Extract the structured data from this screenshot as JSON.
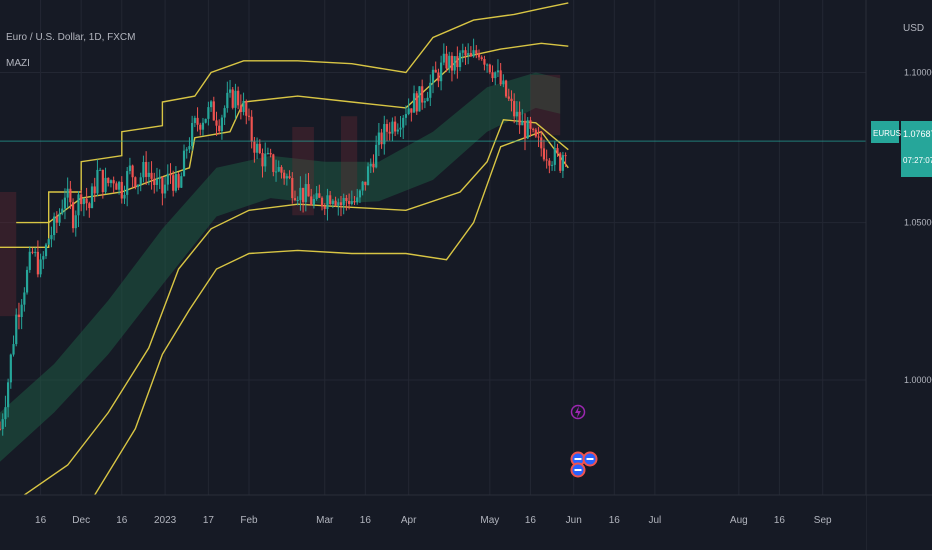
{
  "header": {
    "symbol_title": "Euro / U.S. Dollar, 1D, FXCM",
    "indicator": "MAZI",
    "currency": "USD"
  },
  "price_tag": {
    "symbol": "EURUSD",
    "price": "1.07687",
    "countdown": "07:27:07"
  },
  "colors": {
    "background": "#161a25",
    "grid": "#232733",
    "candle_up": "#26a69a",
    "candle_down": "#ef5350",
    "bands": "#d8c544",
    "cloud_up": "#1f5a44",
    "cloud_down": "#6e2a33",
    "price_line": "#26a69a"
  },
  "event_markers": [
    {
      "icon": "lightning-icon",
      "color": "#9c27b0"
    },
    {
      "icon": "us-flag-icon",
      "color": "#ef5350"
    },
    {
      "icon": "us-flag-icon",
      "color": "#ef5350"
    }
  ],
  "chart_data": {
    "type": "candlestick",
    "title": "Euro / U.S. Dollar, 1D, FXCM",
    "y_scale": "log",
    "ylim": [
      0.965,
      1.125
    ],
    "y_ticks": [
      {
        "label": "1.10000",
        "value": 1.1
      },
      {
        "label": "1.05000",
        "value": 1.05
      },
      {
        "label": "1.00000",
        "value": 1.0
      }
    ],
    "x_tick_labels": [
      "16",
      "Dec",
      "16",
      "2023",
      "17",
      "Feb",
      "Mar",
      "16",
      "Apr",
      "May",
      "16",
      "Jun",
      "16",
      "Jul",
      "Aug",
      "16",
      "Sep"
    ],
    "x_tick_days": [
      15,
      30,
      45,
      61,
      77,
      92,
      120,
      135,
      151,
      181,
      196,
      212,
      227,
      242,
      273,
      288,
      304
    ],
    "x_range_days": [
      0,
      320
    ],
    "last_price": 1.07687,
    "close_points": [
      {
        "d": 0,
        "v": 0.985
      },
      {
        "d": 3,
        "v": 1.0
      },
      {
        "d": 6,
        "v": 1.02
      },
      {
        "d": 9,
        "v": 1.03
      },
      {
        "d": 12,
        "v": 1.04
      },
      {
        "d": 15,
        "v": 1.035
      },
      {
        "d": 18,
        "v": 1.045
      },
      {
        "d": 21,
        "v": 1.05
      },
      {
        "d": 24,
        "v": 1.06
      },
      {
        "d": 27,
        "v": 1.052
      },
      {
        "d": 30,
        "v": 1.06
      },
      {
        "d": 33,
        "v": 1.055
      },
      {
        "d": 36,
        "v": 1.066
      },
      {
        "d": 39,
        "v": 1.062
      },
      {
        "d": 42,
        "v": 1.065
      },
      {
        "d": 45,
        "v": 1.061
      },
      {
        "d": 48,
        "v": 1.067
      },
      {
        "d": 51,
        "v": 1.064
      },
      {
        "d": 54,
        "v": 1.068
      },
      {
        "d": 57,
        "v": 1.063
      },
      {
        "d": 60,
        "v": 1.06
      },
      {
        "d": 63,
        "v": 1.066
      },
      {
        "d": 66,
        "v": 1.06
      },
      {
        "d": 69,
        "v": 1.075
      },
      {
        "d": 72,
        "v": 1.082
      },
      {
        "d": 75,
        "v": 1.085
      },
      {
        "d": 78,
        "v": 1.087
      },
      {
        "d": 81,
        "v": 1.084
      },
      {
        "d": 84,
        "v": 1.09
      },
      {
        "d": 87,
        "v": 1.092
      },
      {
        "d": 90,
        "v": 1.088
      },
      {
        "d": 93,
        "v": 1.078
      },
      {
        "d": 96,
        "v": 1.072
      },
      {
        "d": 99,
        "v": 1.07
      },
      {
        "d": 102,
        "v": 1.068
      },
      {
        "d": 105,
        "v": 1.066
      },
      {
        "d": 108,
        "v": 1.062
      },
      {
        "d": 111,
        "v": 1.06
      },
      {
        "d": 114,
        "v": 1.058
      },
      {
        "d": 117,
        "v": 1.056
      },
      {
        "d": 120,
        "v": 1.058
      },
      {
        "d": 123,
        "v": 1.06
      },
      {
        "d": 126,
        "v": 1.056
      },
      {
        "d": 129,
        "v": 1.058
      },
      {
        "d": 132,
        "v": 1.056
      },
      {
        "d": 135,
        "v": 1.064
      },
      {
        "d": 138,
        "v": 1.072
      },
      {
        "d": 141,
        "v": 1.078
      },
      {
        "d": 144,
        "v": 1.082
      },
      {
        "d": 147,
        "v": 1.084
      },
      {
        "d": 150,
        "v": 1.088
      },
      {
        "d": 153,
        "v": 1.09
      },
      {
        "d": 156,
        "v": 1.092
      },
      {
        "d": 159,
        "v": 1.096
      },
      {
        "d": 162,
        "v": 1.1
      },
      {
        "d": 165,
        "v": 1.104
      },
      {
        "d": 168,
        "v": 1.102
      },
      {
        "d": 171,
        "v": 1.106
      },
      {
        "d": 174,
        "v": 1.104
      },
      {
        "d": 177,
        "v": 1.108
      },
      {
        "d": 180,
        "v": 1.104
      },
      {
        "d": 183,
        "v": 1.1
      },
      {
        "d": 186,
        "v": 1.094
      },
      {
        "d": 189,
        "v": 1.088
      },
      {
        "d": 192,
        "v": 1.083
      },
      {
        "d": 195,
        "v": 1.08
      },
      {
        "d": 198,
        "v": 1.076
      },
      {
        "d": 201,
        "v": 1.074
      },
      {
        "d": 204,
        "v": 1.072
      },
      {
        "d": 207,
        "v": 1.07
      },
      {
        "d": 209,
        "v": 1.076
      }
    ],
    "series": [
      {
        "role": "upper outer band",
        "color": "#d8c544",
        "points": [
          {
            "d": 0,
            "v": 1.042
          },
          {
            "d": 18,
            "v": 1.042
          },
          {
            "d": 18,
            "v": 1.06
          },
          {
            "d": 30,
            "v": 1.06
          },
          {
            "d": 30,
            "v": 1.07
          },
          {
            "d": 45,
            "v": 1.072
          },
          {
            "d": 45,
            "v": 1.08
          },
          {
            "d": 60,
            "v": 1.082
          },
          {
            "d": 60,
            "v": 1.09
          },
          {
            "d": 72,
            "v": 1.092
          },
          {
            "d": 78,
            "v": 1.1
          },
          {
            "d": 90,
            "v": 1.104
          },
          {
            "d": 110,
            "v": 1.104
          },
          {
            "d": 130,
            "v": 1.103
          },
          {
            "d": 150,
            "v": 1.1
          },
          {
            "d": 160,
            "v": 1.112
          },
          {
            "d": 175,
            "v": 1.118
          },
          {
            "d": 190,
            "v": 1.12
          },
          {
            "d": 200,
            "v": 1.122
          },
          {
            "d": 210,
            "v": 1.124
          }
        ]
      },
      {
        "role": "upper mid band",
        "color": "#d8c544",
        "points": [
          {
            "d": 6,
            "v": 1.05
          },
          {
            "d": 18,
            "v": 1.05
          },
          {
            "d": 30,
            "v": 1.058
          },
          {
            "d": 45,
            "v": 1.06
          },
          {
            "d": 60,
            "v": 1.065
          },
          {
            "d": 70,
            "v": 1.068
          },
          {
            "d": 72,
            "v": 1.078
          },
          {
            "d": 85,
            "v": 1.08
          },
          {
            "d": 90,
            "v": 1.09
          },
          {
            "d": 110,
            "v": 1.092
          },
          {
            "d": 130,
            "v": 1.09
          },
          {
            "d": 150,
            "v": 1.088
          },
          {
            "d": 170,
            "v": 1.105
          },
          {
            "d": 185,
            "v": 1.108
          },
          {
            "d": 200,
            "v": 1.11
          },
          {
            "d": 210,
            "v": 1.109
          }
        ]
      },
      {
        "role": "lower mid band",
        "color": "#d8c544",
        "points": [
          {
            "d": 0,
            "v": 0.96
          },
          {
            "d": 25,
            "v": 0.974
          },
          {
            "d": 40,
            "v": 0.99
          },
          {
            "d": 55,
            "v": 1.01
          },
          {
            "d": 66,
            "v": 1.035
          },
          {
            "d": 78,
            "v": 1.048
          },
          {
            "d": 92,
            "v": 1.054
          },
          {
            "d": 110,
            "v": 1.056
          },
          {
            "d": 130,
            "v": 1.055
          },
          {
            "d": 150,
            "v": 1.054
          },
          {
            "d": 170,
            "v": 1.06
          },
          {
            "d": 180,
            "v": 1.07
          },
          {
            "d": 186,
            "v": 1.084
          },
          {
            "d": 198,
            "v": 1.083
          },
          {
            "d": 210,
            "v": 1.074
          }
        ]
      },
      {
        "role": "lower outer band",
        "color": "#d8c544",
        "points": [
          {
            "d": 20,
            "v": 0.945
          },
          {
            "d": 35,
            "v": 0.965
          },
          {
            "d": 50,
            "v": 0.985
          },
          {
            "d": 60,
            "v": 1.008
          },
          {
            "d": 70,
            "v": 1.022
          },
          {
            "d": 80,
            "v": 1.035
          },
          {
            "d": 92,
            "v": 1.04
          },
          {
            "d": 110,
            "v": 1.041
          },
          {
            "d": 130,
            "v": 1.04
          },
          {
            "d": 150,
            "v": 1.04
          },
          {
            "d": 165,
            "v": 1.038
          },
          {
            "d": 175,
            "v": 1.05
          },
          {
            "d": 185,
            "v": 1.075
          },
          {
            "d": 200,
            "v": 1.08
          },
          {
            "d": 210,
            "v": 1.068
          }
        ]
      }
    ],
    "cloud": {
      "upper": [
        {
          "d": 0,
          "v": 0.99
        },
        {
          "d": 20,
          "v": 1.005
        },
        {
          "d": 40,
          "v": 1.025
        },
        {
          "d": 60,
          "v": 1.048
        },
        {
          "d": 80,
          "v": 1.068
        },
        {
          "d": 100,
          "v": 1.072
        },
        {
          "d": 120,
          "v": 1.07
        },
        {
          "d": 140,
          "v": 1.07
        },
        {
          "d": 160,
          "v": 1.08
        },
        {
          "d": 180,
          "v": 1.095
        },
        {
          "d": 198,
          "v": 1.1
        },
        {
          "d": 207,
          "v": 1.098
        }
      ],
      "lower": [
        {
          "d": 0,
          "v": 0.975
        },
        {
          "d": 20,
          "v": 0.99
        },
        {
          "d": 40,
          "v": 1.008
        },
        {
          "d": 60,
          "v": 1.03
        },
        {
          "d": 80,
          "v": 1.052
        },
        {
          "d": 100,
          "v": 1.058
        },
        {
          "d": 120,
          "v": 1.056
        },
        {
          "d": 140,
          "v": 1.057
        },
        {
          "d": 160,
          "v": 1.064
        },
        {
          "d": 180,
          "v": 1.08
        },
        {
          "d": 198,
          "v": 1.088
        },
        {
          "d": 207,
          "v": 1.086
        }
      ]
    }
  }
}
